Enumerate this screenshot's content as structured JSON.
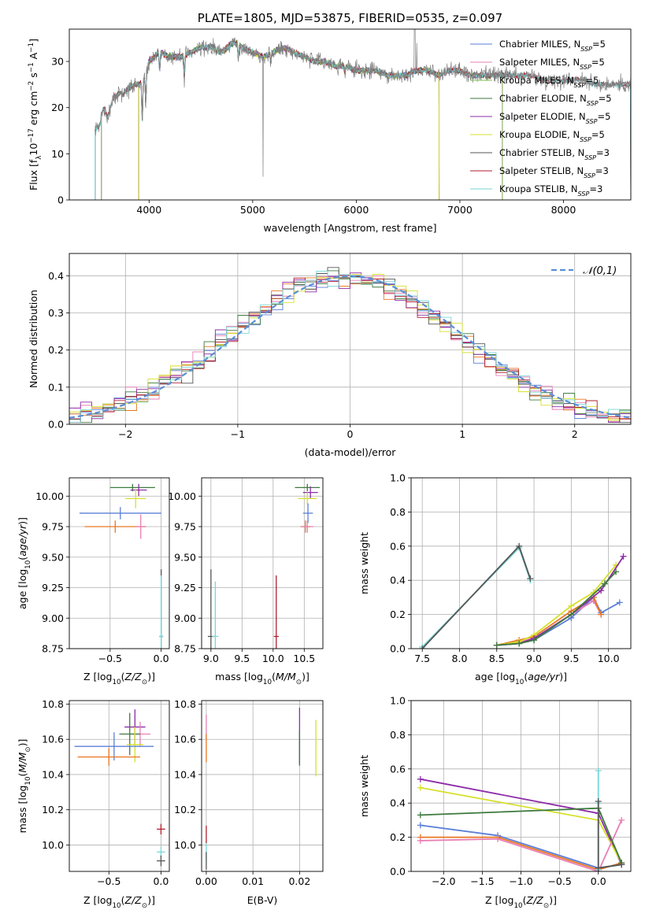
{
  "chart_data": [
    {
      "id": "spectrum",
      "type": "line",
      "title": "PLATE=1805, MJD=53875, FIBERID=0535, z=0.097",
      "xlabel": "wavelength [Angstrom, rest frame]",
      "ylabel": "Flux [f_λ 10^-17 erg cm^-2 s^-1 A^-1]",
      "xlim": [
        3230,
        8650
      ],
      "ylim": [
        0,
        37
      ],
      "xticks": [
        4000,
        5000,
        6000,
        7000,
        8000
      ],
      "yticks": [
        0,
        10,
        20,
        30
      ],
      "legend_position": "top-right",
      "series": [
        {
          "name": "Chabrier MILES, N_SSP=5",
          "color": "#5b7fd6"
        },
        {
          "name": "Salpeter MILES, N_SSP=5",
          "color": "#e87fb4"
        },
        {
          "name": "Kroupa MILES, N_SSP=5",
          "color": "#7fbf52"
        },
        {
          "name": "Chabrier ELODIE, N_SSP=5",
          "color": "#3d7a3d"
        },
        {
          "name": "Salpeter ELODIE, N_SSP=5",
          "color": "#8e2ca8"
        },
        {
          "name": "Kroupa ELODIE, N_SSP=5",
          "color": "#d6e02c"
        },
        {
          "name": "Chabrier STELIB, N_SSP=3",
          "color": "#555555"
        },
        {
          "name": "Salpeter STELIB, N_SSP=3",
          "color": "#b01e2e"
        },
        {
          "name": "Kroupa STELIB, N_SSP=3",
          "color": "#7ad6d6"
        }
      ],
      "data_series": {
        "name": "data",
        "color": "#808080",
        "x": [
          3480,
          3520,
          3560,
          3600,
          3650,
          3700,
          3750,
          3800,
          3850,
          3900,
          3950,
          4000,
          4050,
          4100,
          4200,
          4300,
          4400,
          4500,
          4600,
          4700,
          4800,
          4850,
          4900,
          5000,
          5100,
          5200,
          5300,
          5400,
          5500,
          5600,
          5700,
          5800,
          5900,
          6000,
          6100,
          6200,
          6300,
          6400,
          6500,
          6560,
          6600,
          6700,
          6800,
          6900,
          7000,
          7100,
          7200,
          7300,
          7400,
          7500,
          7600,
          7700,
          7800,
          7900,
          8000,
          8100,
          8200,
          8300,
          8400,
          8500,
          8600
        ],
        "y": [
          15,
          16,
          20,
          18,
          22,
          23,
          23,
          24,
          25,
          25,
          26,
          30,
          31,
          32,
          31,
          31,
          32,
          33,
          33,
          32,
          34,
          34,
          33,
          32,
          31,
          32,
          33,
          32,
          31,
          30,
          30,
          29,
          29,
          28,
          28,
          28,
          27,
          27,
          27,
          28,
          28,
          28,
          27,
          28,
          28,
          27,
          27,
          27,
          27,
          27,
          27,
          27,
          26,
          26,
          26,
          26,
          26,
          25,
          25,
          25,
          25
        ]
      },
      "model_bounds": [
        {
          "name": "Chabrier MILES, N_SSP=5",
          "start": 3540,
          "end": 7410
        },
        {
          "name": "Salpeter MILES, N_SSP=5",
          "start": 3540,
          "end": 7410
        },
        {
          "name": "Kroupa MILES, N_SSP=5",
          "start": 3540,
          "end": 7410
        },
        {
          "name": "Chabrier ELODIE, N_SSP=5",
          "start": 3900,
          "end": 6800
        },
        {
          "name": "Salpeter ELODIE, N_SSP=5",
          "start": 3900,
          "end": 6800
        },
        {
          "name": "Kroupa ELODIE, N_SSP=5",
          "start": 3900,
          "end": 6800
        },
        {
          "name": "Chabrier STELIB, N_SSP=3",
          "start": 3480,
          "end": 8650
        },
        {
          "name": "Salpeter STELIB, N_SSP=3",
          "start": 3480,
          "end": 8650
        },
        {
          "name": "Kroupa STELIB, N_SSP=3",
          "start": 3480,
          "end": 8650
        }
      ]
    },
    {
      "id": "residuals",
      "type": "step",
      "xlabel": "(data-model)/error",
      "ylabel": "Normed distribution",
      "xlim": [
        -2.5,
        2.5
      ],
      "ylim": [
        0,
        0.46
      ],
      "xticks": [
        -2,
        -1,
        0,
        1,
        2
      ],
      "yticks": [
        0.0,
        0.1,
        0.2,
        0.3,
        0.4
      ],
      "legend": [
        {
          "name": "𝒩(0,1)",
          "color": "#5b8fd6",
          "style": "dashed"
        }
      ],
      "legend_position": "top-right",
      "bin_width": 0.1,
      "gaussian": {
        "mu": 0,
        "sigma": 1
      }
    },
    {
      "id": "age-vs-Z",
      "type": "errorbar",
      "xlabel": "Z [log10(Z/Z⊙)]",
      "ylabel": "age [log10(age/yr)]",
      "xlim": [
        -0.9,
        0.08
      ],
      "ylim": [
        8.75,
        10.15
      ],
      "xticks": [
        -0.5,
        0.0
      ],
      "yticks": [
        8.75,
        9.0,
        9.25,
        9.5,
        9.75,
        10.0
      ],
      "points": [
        {
          "x": -0.28,
          "y": 10.07,
          "xerr": 0.22,
          "yerr": 0.03,
          "color": "#3d7a3d"
        },
        {
          "x": -0.22,
          "y": 10.05,
          "xerr": 0.08,
          "yerr": 0.05,
          "color": "#8e2ca8"
        },
        {
          "x": -0.25,
          "y": 9.98,
          "xerr": 0.1,
          "yerr": 0.08,
          "color": "#d6e02c"
        },
        {
          "x": -0.4,
          "y": 9.86,
          "xerr": 0.4,
          "yerr": 0.05,
          "color": "#5b7fd6"
        },
        {
          "x": -0.45,
          "y": 9.75,
          "xerr": 0.3,
          "yerr": 0.05,
          "color": "#e87722"
        },
        {
          "x": -0.2,
          "y": 9.75,
          "xerr": 0.05,
          "yerr": 0.1,
          "color": "#e87fb4"
        },
        {
          "x": 0.0,
          "y": 8.85,
          "xerr": 0.02,
          "yerr": 0.55,
          "color": "#555555"
        },
        {
          "x": 0.0,
          "y": 8.85,
          "xerr": 0.02,
          "yerr": 0.5,
          "color": "#7ad6d6"
        }
      ]
    },
    {
      "id": "age-vs-mass",
      "type": "errorbar",
      "xlabel": "mass [log10(M/M⊙)]",
      "ylabel": "",
      "xlim": [
        8.85,
        10.8
      ],
      "ylim": [
        8.75,
        10.15
      ],
      "xticks": [
        9.0,
        9.5,
        10.0,
        10.5
      ],
      "yticks": [
        8.75,
        9.0,
        9.25,
        9.5,
        9.75,
        10.0
      ],
      "points": [
        {
          "x": 10.55,
          "y": 10.07,
          "xerr": 0.2,
          "yerr": 0.03,
          "color": "#3d7a3d"
        },
        {
          "x": 10.6,
          "y": 10.03,
          "xerr": 0.12,
          "yerr": 0.05,
          "color": "#8e2ca8"
        },
        {
          "x": 10.55,
          "y": 9.98,
          "xerr": 0.15,
          "yerr": 0.05,
          "color": "#d6e02c"
        },
        {
          "x": 10.56,
          "y": 9.86,
          "xerr": 0.08,
          "yerr": 0.08,
          "color": "#5b7fd6"
        },
        {
          "x": 10.52,
          "y": 9.75,
          "xerr": 0.08,
          "yerr": 0.05,
          "color": "#e87722"
        },
        {
          "x": 10.55,
          "y": 9.75,
          "xerr": 0.1,
          "yerr": 0.05,
          "color": "#e87fb4"
        },
        {
          "x": 9.0,
          "y": 8.85,
          "xerr": 0.05,
          "yerr": 0.55,
          "color": "#555555"
        },
        {
          "x": 9.07,
          "y": 8.85,
          "xerr": 0.05,
          "yerr": 0.45,
          "color": "#7ad6d6"
        },
        {
          "x": 10.05,
          "y": 8.85,
          "xerr": 0.04,
          "yerr": 0.5,
          "color": "#b01e2e"
        }
      ]
    },
    {
      "id": "mass-weight-vs-age",
      "type": "line",
      "xlabel": "age [log10(age/yr)]",
      "ylabel": "mass weight",
      "xlim": [
        7.35,
        10.3
      ],
      "ylim": [
        0,
        1
      ],
      "xticks": [
        7.5,
        8.0,
        8.5,
        9.0,
        9.5,
        10.0
      ],
      "yticks": [
        0.0,
        0.2,
        0.4,
        0.6,
        0.8,
        1.0
      ],
      "series": [
        {
          "color": "#7ad6d6",
          "x": [
            7.5,
            8.8,
            8.95
          ],
          "y": [
            0.01,
            0.59,
            0.4
          ]
        },
        {
          "color": "#555555",
          "x": [
            7.5,
            8.8,
            8.95
          ],
          "y": [
            0.0,
            0.6,
            0.41
          ]
        },
        {
          "color": "#5b7fd6",
          "x": [
            8.5,
            8.8,
            9.0,
            9.5,
            9.8,
            9.9,
            10.15
          ],
          "y": [
            0.02,
            0.03,
            0.05,
            0.18,
            0.3,
            0.21,
            0.27
          ]
        },
        {
          "color": "#e87fb4",
          "x": [
            8.5,
            8.8,
            9.0,
            9.5,
            9.8,
            9.9
          ],
          "y": [
            0.02,
            0.04,
            0.06,
            0.2,
            0.28,
            0.2
          ]
        },
        {
          "color": "#e87722",
          "x": [
            8.5,
            8.8,
            9.0,
            9.5,
            9.8,
            9.9
          ],
          "y": [
            0.02,
            0.05,
            0.07,
            0.22,
            0.3,
            0.2
          ]
        },
        {
          "color": "#d6e02c",
          "x": [
            8.5,
            8.8,
            9.0,
            9.5,
            9.8,
            10.1
          ],
          "y": [
            0.02,
            0.04,
            0.08,
            0.25,
            0.33,
            0.49
          ]
        },
        {
          "color": "#8e2ca8",
          "x": [
            8.5,
            8.8,
            9.0,
            9.5,
            9.9,
            10.2
          ],
          "y": [
            0.02,
            0.03,
            0.06,
            0.2,
            0.34,
            0.54
          ]
        },
        {
          "color": "#3d7a3d",
          "x": [
            8.5,
            8.8,
            9.0,
            9.5,
            9.95,
            10.1
          ],
          "y": [
            0.02,
            0.03,
            0.05,
            0.2,
            0.38,
            0.45
          ]
        }
      ]
    },
    {
      "id": "mass-vs-Z",
      "type": "errorbar",
      "xlabel": "Z [log10(Z/Z⊙)]",
      "ylabel": "mass [log10(M/M⊙)]",
      "xlim": [
        -0.88,
        0.08
      ],
      "ylim": [
        9.85,
        10.82
      ],
      "xticks": [
        -0.5,
        0.0
      ],
      "yticks": [
        10.0,
        10.2,
        10.4,
        10.6,
        10.8
      ],
      "points": [
        {
          "x": -0.25,
          "y": 10.67,
          "xerr": 0.1,
          "yerr": 0.1,
          "color": "#8e2ca8"
        },
        {
          "x": -0.2,
          "y": 10.63,
          "xerr": 0.1,
          "yerr": 0.07,
          "color": "#e87fb4"
        },
        {
          "x": -0.3,
          "y": 10.63,
          "xerr": 0.1,
          "yerr": 0.12,
          "color": "#3d7a3d"
        },
        {
          "x": -0.25,
          "y": 10.57,
          "xerr": 0.08,
          "yerr": 0.1,
          "color": "#d6e02c"
        },
        {
          "x": -0.45,
          "y": 10.56,
          "xerr": 0.38,
          "yerr": 0.08,
          "color": "#5b7fd6"
        },
        {
          "x": -0.5,
          "y": 10.5,
          "xerr": 0.3,
          "yerr": 0.05,
          "color": "#e87722"
        },
        {
          "x": 0.0,
          "y": 10.09,
          "xerr": 0.04,
          "yerr": 0.03,
          "color": "#b01e2e"
        },
        {
          "x": 0.0,
          "y": 9.96,
          "xerr": 0.04,
          "yerr": 0.03,
          "color": "#7ad6d6"
        },
        {
          "x": 0.0,
          "y": 9.91,
          "xerr": 0.04,
          "yerr": 0.03,
          "color": "#555555"
        }
      ]
    },
    {
      "id": "mass-vs-EBV",
      "type": "errorbar",
      "xlabel": "E(B-V)",
      "ylabel": "",
      "xlim": [
        -0.001,
        0.025
      ],
      "ylim": [
        9.85,
        10.82
      ],
      "xticks": [
        0.0,
        0.01,
        0.02
      ],
      "yticks": [
        10.0,
        10.2,
        10.4,
        10.6,
        10.8
      ],
      "points": [
        {
          "x": 0.0,
          "y": 10.67,
          "xerr": 0,
          "yerr": 0.07,
          "color": "#e87fb4"
        },
        {
          "x": 0.0,
          "y": 10.55,
          "xerr": 0,
          "yerr": 0.08,
          "color": "#e87722"
        },
        {
          "x": 0.0,
          "y": 10.06,
          "xerr": 0,
          "yerr": 0.05,
          "color": "#b01e2e"
        },
        {
          "x": 0.0,
          "y": 9.96,
          "xerr": 0,
          "yerr": 0.05,
          "color": "#7ad6d6"
        },
        {
          "x": 0.0,
          "y": 9.91,
          "xerr": 0,
          "yerr": 0.05,
          "color": "#555555"
        },
        {
          "x": 0.02,
          "y": 10.62,
          "xerr": 0,
          "yerr": 0.16,
          "color": "#8e2ca8"
        },
        {
          "x": 0.02,
          "y": 10.55,
          "xerr": 0,
          "yerr": 0.1,
          "color": "#3d7a3d"
        },
        {
          "x": 0.0235,
          "y": 10.55,
          "xerr": 0,
          "yerr": 0.16,
          "color": "#d6e02c"
        }
      ]
    },
    {
      "id": "mass-weight-vs-Z",
      "type": "line",
      "xlabel": "Z [log10(Z/Z⊙)]",
      "ylabel": "mass weight",
      "xlim": [
        -2.42,
        0.42
      ],
      "ylim": [
        0,
        1
      ],
      "xticks": [
        -2.0,
        -1.5,
        -1.0,
        -0.5,
        0.0
      ],
      "yticks": [
        0.0,
        0.2,
        0.4,
        0.6,
        0.8,
        1.0
      ],
      "series": [
        {
          "color": "#8e2ca8",
          "x": [
            -2.3,
            0.0,
            0.3
          ],
          "y": [
            0.54,
            0.34,
            0.04
          ]
        },
        {
          "color": "#d6e02c",
          "x": [
            -2.3,
            0.0,
            0.3
          ],
          "y": [
            0.49,
            0.3,
            0.05
          ]
        },
        {
          "color": "#5b7fd6",
          "x": [
            -2.3,
            -1.3,
            0.0,
            0.3
          ],
          "y": [
            0.27,
            0.21,
            0.02,
            0.04
          ]
        },
        {
          "color": "#e87722",
          "x": [
            -2.3,
            -1.3,
            0.0,
            0.3
          ],
          "y": [
            0.2,
            0.2,
            0.01,
            0.05
          ]
        },
        {
          "color": "#e87fb4",
          "x": [
            -2.3,
            -1.3,
            0.0,
            0.3
          ],
          "y": [
            0.18,
            0.19,
            0.0,
            0.3
          ]
        },
        {
          "color": "#3d7a3d",
          "x": [
            -2.3,
            0.0,
            0.3
          ],
          "y": [
            0.33,
            0.37,
            0.05
          ]
        },
        {
          "color": "#7ad6d6",
          "x": [
            0.0,
            0.0,
            0.0
          ],
          "y": [
            0.59,
            0.4,
            0.01
          ]
        },
        {
          "color": "#555555",
          "x": [
            0.0,
            0.0,
            0.3
          ],
          "y": [
            0.41,
            0.02,
            0.04
          ]
        }
      ]
    }
  ]
}
